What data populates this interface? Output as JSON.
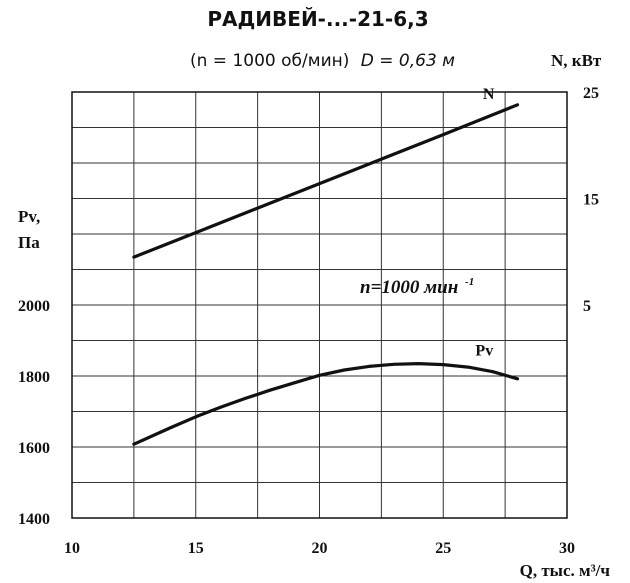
{
  "title": "РАДИВЕЙ-...-21-6,3",
  "subtitle": {
    "speed": "(n = 1000 об/мин)",
    "diameter": "D = 0,63 м"
  },
  "annotation": {
    "text": "n=1000 мин",
    "superscript": "-1"
  },
  "chart_data": {
    "type": "line",
    "title": "РАДИВЕЙ-...-21-6,3",
    "xlabel": "Q, тыс. м³/ч",
    "ylabel": "Pv, Па",
    "ylabel_lines": [
      "Pv,",
      "Па"
    ],
    "y2label": "N, кВт",
    "xlim": [
      10,
      30
    ],
    "ylim": [
      1400,
      2600
    ],
    "y2lim": [
      -15,
      25
    ],
    "x_ticks": [
      10,
      15,
      20,
      25,
      30
    ],
    "y_ticks": [
      1400,
      1600,
      1800,
      2000
    ],
    "y2_ticks": [
      5,
      15,
      25
    ],
    "grid": true,
    "series": [
      {
        "name": "N",
        "axis": "right",
        "x": [
          12.5,
          15,
          17.5,
          20,
          22.5,
          25,
          28
        ],
        "values": [
          9.5,
          11.8,
          14.1,
          16.4,
          18.7,
          21.0,
          23.8
        ]
      },
      {
        "name": "Pv",
        "axis": "left",
        "x": [
          12.5,
          14,
          15,
          16,
          17,
          18,
          19,
          20,
          21,
          22,
          23,
          24,
          25,
          26,
          27,
          28
        ],
        "values": [
          1608,
          1655,
          1685,
          1712,
          1737,
          1760,
          1781,
          1802,
          1817,
          1827,
          1833,
          1835,
          1832,
          1825,
          1812,
          1792
        ]
      }
    ]
  }
}
